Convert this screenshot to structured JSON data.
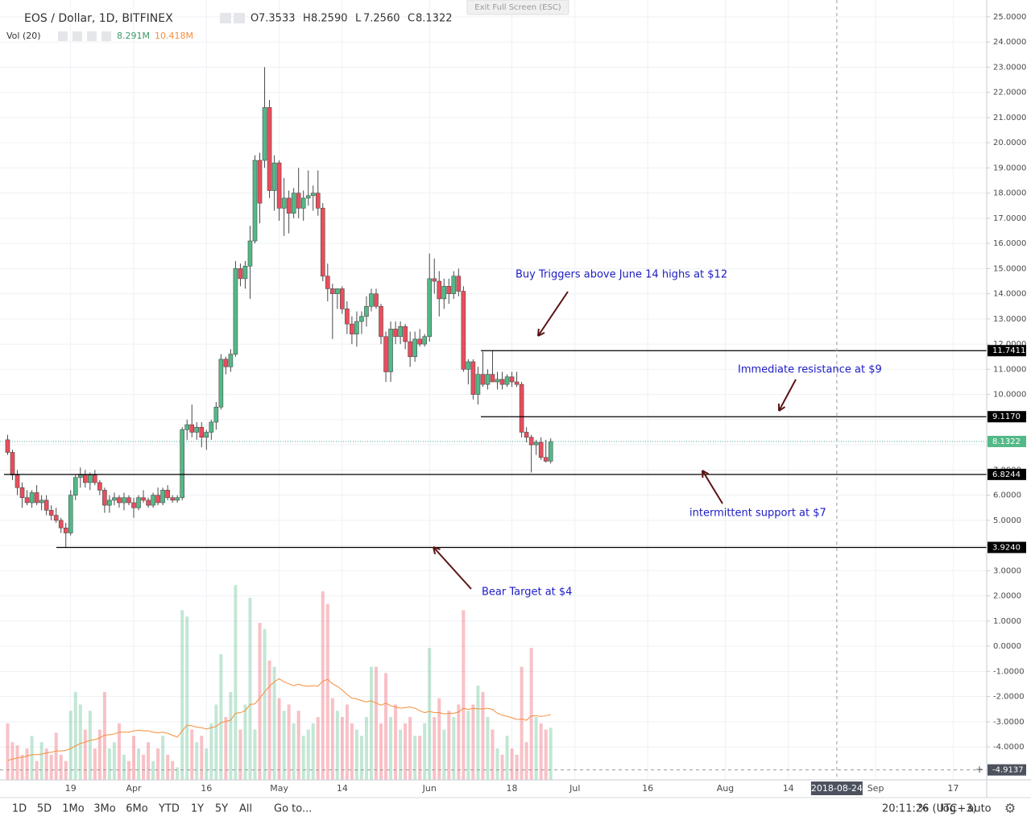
{
  "chart_data": {
    "type": "candlestick",
    "symbol": "EOS / Dollar, 1D, BITFINEX",
    "ohlc_labels": [
      "O",
      "H",
      "L",
      "C"
    ],
    "ohlc_value_labels": [
      "7.3533",
      "8.2590",
      "7.2560",
      "8.1322"
    ],
    "volume_name": "Vol (20)",
    "volume_value_label": "8.291M",
    "volume_ma_value_label": "10.418M",
    "up_color": "#53b987",
    "down_color": "#eb4d5c",
    "ma_color": "#f68e3a",
    "grid": true,
    "x": [
      "2018-03-06",
      "2018-03-07",
      "2018-03-08",
      "2018-03-09",
      "2018-03-10",
      "2018-03-11",
      "2018-03-12",
      "2018-03-13",
      "2018-03-14",
      "2018-03-15",
      "2018-03-16",
      "2018-03-17",
      "2018-03-18",
      "2018-03-19",
      "2018-03-20",
      "2018-03-21",
      "2018-03-22",
      "2018-03-23",
      "2018-03-24",
      "2018-03-25",
      "2018-03-26",
      "2018-03-27",
      "2018-03-28",
      "2018-03-29",
      "2018-03-30",
      "2018-03-31",
      "2018-04-01",
      "2018-04-02",
      "2018-04-03",
      "2018-04-04",
      "2018-04-05",
      "2018-04-06",
      "2018-04-07",
      "2018-04-08",
      "2018-04-09",
      "2018-04-10",
      "2018-04-11",
      "2018-04-12",
      "2018-04-13",
      "2018-04-14",
      "2018-04-15",
      "2018-04-16",
      "2018-04-17",
      "2018-04-18",
      "2018-04-19",
      "2018-04-20",
      "2018-04-21",
      "2018-04-22",
      "2018-04-23",
      "2018-04-24",
      "2018-04-25",
      "2018-04-26",
      "2018-04-27",
      "2018-04-28",
      "2018-04-29",
      "2018-04-30",
      "2018-05-01",
      "2018-05-02",
      "2018-05-03",
      "2018-05-04",
      "2018-05-05",
      "2018-05-06",
      "2018-05-07",
      "2018-05-08",
      "2018-05-09",
      "2018-05-10",
      "2018-05-11",
      "2018-05-12",
      "2018-05-13",
      "2018-05-14",
      "2018-05-15",
      "2018-05-16",
      "2018-05-17",
      "2018-05-18",
      "2018-05-19",
      "2018-05-20",
      "2018-05-21",
      "2018-05-22",
      "2018-05-23",
      "2018-05-24",
      "2018-05-25",
      "2018-05-26",
      "2018-05-27",
      "2018-05-28",
      "2018-05-29",
      "2018-05-30",
      "2018-05-31",
      "2018-06-01",
      "2018-06-02",
      "2018-06-03",
      "2018-06-04",
      "2018-06-05",
      "2018-06-06",
      "2018-06-07",
      "2018-06-08",
      "2018-06-09",
      "2018-06-10",
      "2018-06-11",
      "2018-06-12",
      "2018-06-13",
      "2018-06-14",
      "2018-06-15",
      "2018-06-16",
      "2018-06-17",
      "2018-06-18",
      "2018-06-19",
      "2018-06-20",
      "2018-06-21",
      "2018-06-22",
      "2018-06-23",
      "2018-06-24",
      "2018-06-25",
      "2018-06-26"
    ],
    "open": [
      8.2,
      7.7,
      6.8,
      6.3,
      5.9,
      5.7,
      6.1,
      5.7,
      5.8,
      5.4,
      5.2,
      5.0,
      4.7,
      4.5,
      6.0,
      6.7,
      6.8,
      6.5,
      6.8,
      6.5,
      6.2,
      5.6,
      5.8,
      5.9,
      5.7,
      5.9,
      5.7,
      5.5,
      5.9,
      5.8,
      5.6,
      6.0,
      5.7,
      6.2,
      5.9,
      5.8,
      5.9,
      8.6,
      8.8,
      8.5,
      8.7,
      8.3,
      8.5,
      8.9,
      9.5,
      11.4,
      11.1,
      11.6,
      15.0,
      14.6,
      15.1,
      16.1,
      19.3,
      19.3,
      21.4,
      18.1,
      19.2,
      17.4,
      17.8,
      17.2,
      18.0,
      17.4,
      17.8,
      17.9,
      18.0,
      17.4,
      14.7,
      14.2,
      14.0,
      14.2,
      13.4,
      12.8,
      12.4,
      12.9,
      13.1,
      13.5,
      14.0,
      13.5,
      12.3,
      10.9,
      12.6,
      12.3,
      12.7,
      12.1,
      11.5,
      12.2,
      12.0,
      12.3,
      14.6,
      14.5,
      13.8,
      14.3,
      14.0,
      14.7,
      14.1,
      11.0,
      11.3,
      10.0,
      10.8,
      10.4,
      10.8,
      10.5,
      10.6,
      10.4,
      10.7,
      10.5,
      10.4,
      8.5,
      8.3,
      8.0,
      8.1,
      7.5,
      7.3533
    ],
    "high": [
      8.4,
      7.8,
      7.0,
      6.5,
      6.2,
      6.2,
      6.4,
      6.0,
      6.0,
      5.6,
      5.5,
      5.1,
      4.9,
      6.2,
      6.8,
      7.1,
      7.0,
      6.9,
      7.0,
      6.6,
      6.3,
      6.0,
      6.1,
      6.0,
      6.1,
      6.0,
      5.9,
      6.0,
      6.2,
      5.9,
      6.1,
      6.3,
      6.3,
      6.4,
      6.0,
      6.0,
      8.7,
      9.0,
      9.6,
      8.9,
      8.9,
      8.6,
      9.0,
      9.7,
      11.6,
      11.5,
      11.8,
      15.3,
      15.2,
      15.3,
      16.7,
      19.5,
      19.6,
      23.0,
      21.7,
      19.5,
      19.3,
      18.6,
      18.1,
      18.2,
      19.0,
      18.1,
      18.9,
      18.3,
      18.9,
      17.6,
      15.2,
      14.4,
      14.2,
      14.3,
      13.7,
      13.1,
      13.3,
      13.3,
      13.9,
      14.2,
      14.2,
      13.6,
      12.5,
      12.9,
      12.9,
      12.9,
      12.8,
      12.5,
      12.5,
      12.6,
      12.4,
      15.6,
      15.4,
      14.9,
      14.6,
      14.6,
      14.9,
      15.0,
      14.3,
      11.4,
      11.4,
      11.1,
      11.7,
      11.0,
      11.74,
      10.9,
      10.9,
      10.8,
      10.9,
      10.9,
      10.5,
      8.7,
      8.4,
      8.2,
      8.3,
      8.2,
      8.259
    ],
    "low": [
      7.6,
      6.6,
      6.0,
      5.5,
      5.6,
      5.5,
      5.6,
      5.4,
      5.2,
      5.0,
      4.9,
      4.5,
      3.92,
      4.4,
      5.8,
      6.3,
      6.3,
      6.2,
      6.4,
      6.0,
      5.3,
      5.3,
      5.6,
      5.5,
      5.4,
      5.6,
      5.1,
      5.4,
      5.7,
      5.5,
      5.5,
      5.6,
      5.6,
      5.8,
      5.7,
      5.7,
      5.8,
      8.2,
      8.3,
      8.2,
      7.9,
      7.8,
      8.2,
      8.6,
      9.4,
      10.8,
      10.9,
      11.5,
      14.3,
      14.2,
      13.8,
      16.0,
      16.8,
      19.0,
      17.8,
      17.3,
      16.9,
      16.3,
      16.4,
      17.0,
      17.0,
      16.9,
      17.5,
      17.3,
      17.1,
      14.5,
      13.7,
      12.2,
      13.4,
      13.2,
      12.4,
      12.0,
      11.9,
      12.4,
      12.7,
      13.3,
      13.4,
      12.0,
      10.5,
      10.5,
      12.0,
      12.0,
      11.8,
      11.1,
      11.3,
      11.9,
      11.9,
      12.1,
      14.0,
      13.1,
      13.4,
      13.6,
      13.8,
      13.9,
      10.9,
      10.4,
      9.8,
      9.6,
      10.3,
      10.2,
      10.5,
      10.2,
      10.2,
      10.3,
      10.3,
      10.3,
      8.3,
      8.1,
      6.9,
      7.6,
      7.4,
      7.3,
      7.256
    ],
    "close": [
      7.7,
      6.8,
      6.3,
      5.9,
      5.7,
      6.1,
      5.7,
      5.8,
      5.4,
      5.2,
      5.0,
      4.7,
      4.5,
      6.0,
      6.7,
      6.8,
      6.5,
      6.8,
      6.5,
      6.2,
      5.6,
      5.8,
      5.9,
      5.7,
      5.9,
      5.7,
      5.5,
      5.9,
      5.8,
      5.6,
      6.0,
      5.7,
      6.2,
      5.9,
      5.8,
      5.9,
      8.6,
      8.8,
      8.5,
      8.7,
      8.3,
      8.5,
      8.9,
      9.5,
      11.4,
      11.1,
      11.6,
      15.0,
      14.6,
      15.1,
      16.1,
      19.3,
      17.6,
      21.4,
      18.1,
      19.2,
      17.4,
      17.8,
      17.2,
      18.0,
      17.4,
      17.8,
      17.9,
      18.0,
      17.4,
      14.7,
      14.2,
      14.0,
      14.2,
      13.4,
      12.8,
      12.4,
      12.9,
      13.1,
      13.5,
      14.0,
      13.5,
      12.3,
      10.9,
      12.6,
      12.3,
      12.7,
      12.1,
      11.5,
      12.2,
      12.0,
      12.3,
      14.6,
      14.5,
      13.8,
      14.3,
      14.0,
      14.7,
      14.1,
      11.0,
      11.3,
      10.0,
      10.8,
      10.4,
      10.8,
      10.5,
      10.6,
      10.4,
      10.7,
      10.5,
      10.4,
      8.5,
      8.3,
      8.0,
      8.1,
      7.5,
      7.35,
      8.1322
    ],
    "volume": [
      9,
      6,
      5.5,
      4,
      5,
      7,
      3,
      6,
      5,
      4,
      7.5,
      4,
      3,
      11,
      14,
      12,
      8,
      11,
      5,
      8,
      14,
      5,
      6,
      9,
      4,
      3,
      7,
      5,
      4,
      6,
      3,
      5,
      7,
      4,
      3,
      2,
      27,
      26,
      8,
      6,
      7,
      5,
      9,
      12,
      20,
      10,
      14,
      31,
      8,
      12,
      29,
      8,
      25,
      24,
      19,
      18,
      13,
      11,
      12,
      9,
      11,
      7,
      8,
      9,
      10,
      30,
      28,
      13,
      11,
      10,
      12,
      9,
      8,
      7,
      10,
      18,
      18,
      9,
      17,
      10,
      12,
      8,
      9,
      10,
      7,
      7,
      9,
      21,
      10,
      13,
      8,
      11,
      10,
      12,
      27,
      11,
      12,
      15,
      14,
      10,
      8,
      5,
      4,
      7,
      5,
      4,
      18,
      6,
      21,
      10,
      9,
      8,
      8.291
    ],
    "volume_ma": [
      3.1,
      3.3,
      3.5,
      3.6,
      3.8,
      4.0,
      4.0,
      4.1,
      4.3,
      4.4,
      4.6,
      4.6,
      4.7,
      5.0,
      5.4,
      5.8,
      6.0,
      6.3,
      6.4,
      6.7,
      7.1,
      7.2,
      7.3,
      7.6,
      7.6,
      7.6,
      7.8,
      7.9,
      7.8,
      7.8,
      7.6,
      7.5,
      7.6,
      7.4,
      7.1,
      6.8,
      7.8,
      8.7,
      8.6,
      8.4,
      8.3,
      8.1,
      8.3,
      8.5,
      9.1,
      9.3,
      9.5,
      10.6,
      10.7,
      11.0,
      12.0,
      12.1,
      13.0,
      14.0,
      14.9,
      15.6,
      16.1,
      15.6,
      15.3,
      15.0,
      15.2,
      15.0,
      14.9,
      15.0,
      14.9,
      15.7,
      16.0,
      15.3,
      14.9,
      14.3,
      13.6,
      13.0,
      12.9,
      12.6,
      12.4,
      12.6,
      12.2,
      11.9,
      12.2,
      11.8,
      11.6,
      11.4,
      11.5,
      11.6,
      11.4,
      11.0,
      10.7,
      10.9,
      10.7,
      10.7,
      10.5,
      10.6,
      10.6,
      10.8,
      11.4,
      11.2,
      11.4,
      11.3,
      11.3,
      11.4,
      11.2,
      10.6,
      10.3,
      10.1,
      9.9,
      9.6,
      9.7,
      9.5,
      10.2,
      10.2,
      10.1,
      10.2,
      10.418
    ],
    "ylim": [
      -5.31,
      25.67
    ],
    "yticks": [
      {
        "value": 25,
        "label": "25.0000"
      },
      {
        "value": 24,
        "label": "24.0000"
      },
      {
        "value": 23,
        "label": "23.0000"
      },
      {
        "value": 22,
        "label": "22.0000"
      },
      {
        "value": 21,
        "label": "21.0000"
      },
      {
        "value": 20,
        "label": "20.0000"
      },
      {
        "value": 19,
        "label": "19.0000"
      },
      {
        "value": 18,
        "label": "18.0000"
      },
      {
        "value": 17,
        "label": "17.0000"
      },
      {
        "value": 16,
        "label": "16.0000"
      },
      {
        "value": 15,
        "label": "15.0000"
      },
      {
        "value": 14,
        "label": "14.0000"
      },
      {
        "value": 13,
        "label": "13.0000"
      },
      {
        "value": 12,
        "label": "12.0000"
      },
      {
        "value": 11,
        "label": "11.0000"
      },
      {
        "value": 10,
        "label": "10.0000"
      },
      {
        "value": 9,
        "label": "9.0000"
      },
      {
        "value": 8,
        "label": "8.0000"
      },
      {
        "value": 7,
        "label": "7.0000"
      },
      {
        "value": 6,
        "label": "6.0000"
      },
      {
        "value": 5,
        "label": "5.0000"
      },
      {
        "value": 4,
        "label": "4.0000"
      },
      {
        "value": 3,
        "label": "3.0000"
      },
      {
        "value": 2,
        "label": "2.0000"
      },
      {
        "value": 1,
        "label": "1.0000"
      },
      {
        "value": 0,
        "label": "0.0000"
      },
      {
        "value": -1,
        "label": "-1.0000"
      },
      {
        "value": -2,
        "label": "-2.0000"
      },
      {
        "value": -3,
        "label": "-3.0000"
      },
      {
        "value": -4,
        "label": "-4.0000"
      }
    ],
    "xticks": [
      {
        "value": "2018-03-19",
        "label": "19"
      },
      {
        "value": "2018-04-01",
        "label": "Apr"
      },
      {
        "value": "2018-04-16",
        "label": "16"
      },
      {
        "value": "2018-05-01",
        "label": "May"
      },
      {
        "value": "2018-05-14",
        "label": "14"
      },
      {
        "value": "2018-06-01",
        "label": "Jun"
      },
      {
        "value": "2018-06-18",
        "label": "18"
      },
      {
        "value": "2018-07-01",
        "label": "Jul"
      },
      {
        "value": "2018-07-16",
        "label": "16"
      },
      {
        "value": "2018-08-01",
        "label": "Aug"
      },
      {
        "value": "2018-08-14",
        "label": "14"
      },
      {
        "value": "2018-09-01",
        "label": "Sep"
      },
      {
        "value": "2018-09-17",
        "label": "17"
      }
    ],
    "levels": [
      {
        "value": 11.7411,
        "label": "11.7411"
      },
      {
        "value": 9.117,
        "label": "9.1170"
      },
      {
        "value": 6.8244,
        "label": "6.8244"
      },
      {
        "value": 3.924,
        "label": "3.9240"
      }
    ],
    "annotations": [
      "Buy Triggers above June 14 highs at $12",
      "Immediate resistance at $9",
      "intermittent support at $7",
      "Bear Target at $4"
    ],
    "crosshair": {
      "x": "2018-08-24",
      "y": -4.9137
    }
  },
  "exit_fullscreen": "Exit Full Screen (ESC)",
  "toolbar": {
    "ranges": [
      "1D",
      "5D",
      "1Mo",
      "3Mo",
      "6Mo",
      "YTD",
      "1Y",
      "5Y",
      "All"
    ],
    "goto": "Go to...",
    "time": "20:11:26 (UTC+3)",
    "options": [
      "%",
      "log",
      "auto"
    ]
  }
}
